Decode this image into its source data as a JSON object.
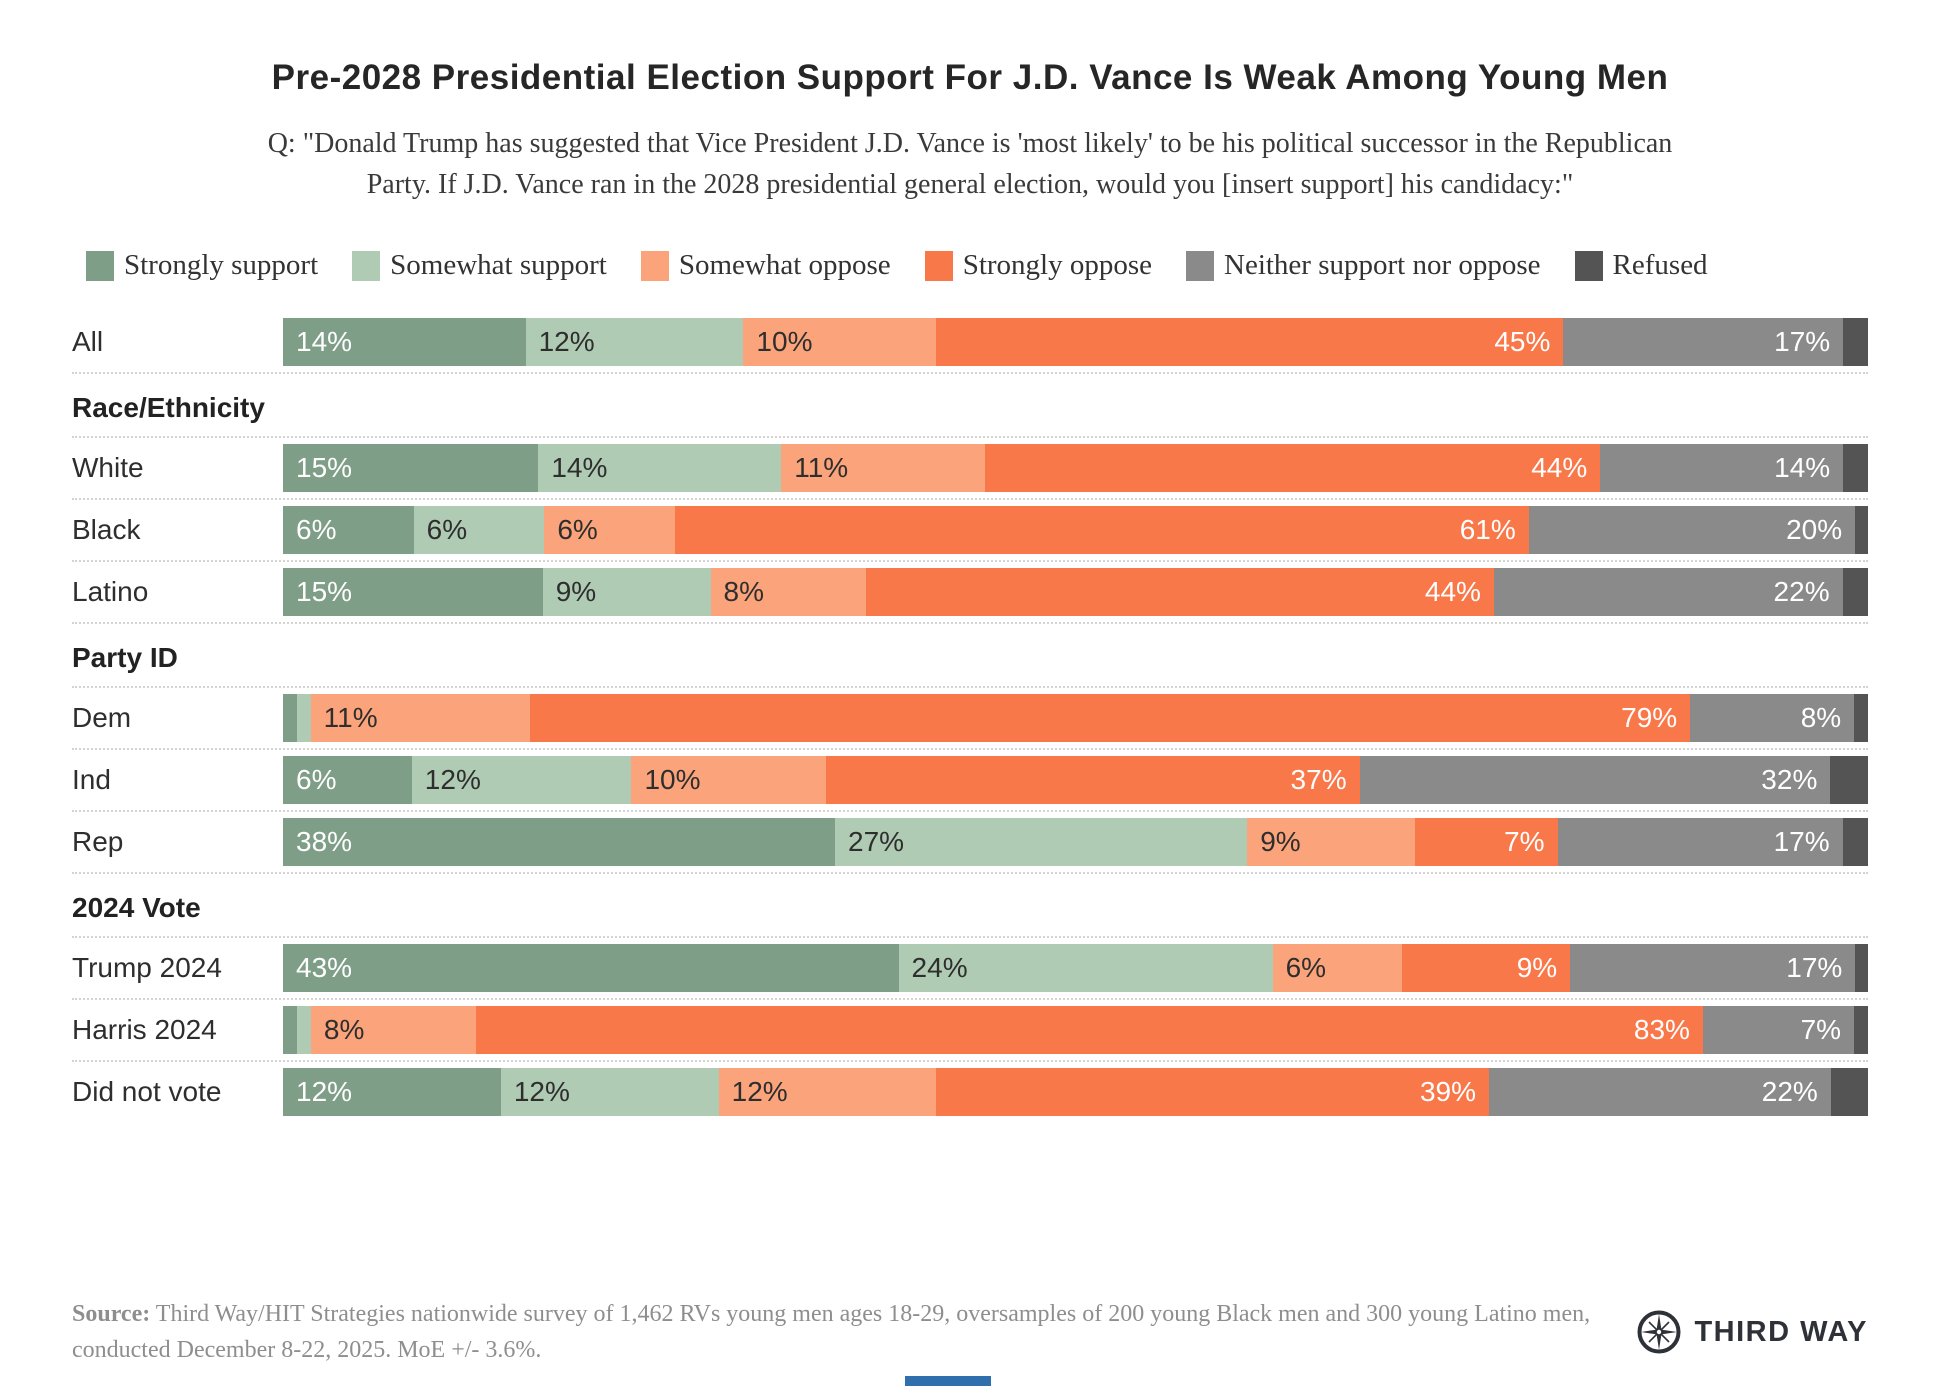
{
  "title": "Pre-2028 Presidential Election Support For J.D. Vance Is Weak Among Young Men",
  "question": "Q: \"Donald Trump has suggested that Vice President J.D. Vance is 'most likely' to be his political successor in the Republican Party. If J.D. Vance ran in the 2028 presidential general election, would you [insert support] his candidacy:\"",
  "chart_data": {
    "type": "bar",
    "variant": "horizontal-stacked",
    "unit": "%",
    "legend_position": "top",
    "label_threshold": 5,
    "series_names": [
      "Strongly support",
      "Somewhat support",
      "Somewhat oppose",
      "Strongly oppose",
      "Neither support nor oppose",
      "Refused"
    ],
    "series_colors": [
      "#7E9E88",
      "#AFCBB3",
      "#FBA47B",
      "#F97849",
      "#8A8A8A",
      "#545454"
    ],
    "series_label_colors": [
      "#FFFFFF",
      "#2E2E2E",
      "#2E2E2E",
      "#FFFFFF",
      "#FFFFFF",
      ""
    ],
    "rows": [
      {
        "type": "bar",
        "label": "All",
        "values": [
          14,
          12,
          10,
          45,
          17,
          2
        ]
      },
      {
        "type": "section",
        "label": "Race/Ethnicity"
      },
      {
        "type": "bar",
        "label": "White",
        "values": [
          15,
          14,
          11,
          44,
          14,
          2
        ]
      },
      {
        "type": "bar",
        "label": "Black",
        "values": [
          6,
          6,
          6,
          61,
          20,
          1
        ]
      },
      {
        "type": "bar",
        "label": "Latino",
        "values": [
          15,
          9,
          8,
          44,
          22,
          2
        ]
      },
      {
        "type": "section",
        "label": "Party ID"
      },
      {
        "type": "bar",
        "label": "Dem",
        "values": [
          1,
          1,
          11,
          79,
          8,
          1
        ]
      },
      {
        "type": "bar",
        "label": "Ind",
        "values": [
          6,
          12,
          10,
          37,
          32,
          3
        ]
      },
      {
        "type": "bar",
        "label": "Rep",
        "values": [
          38,
          27,
          9,
          7,
          17,
          2
        ]
      },
      {
        "type": "section",
        "label": "2024 Vote"
      },
      {
        "type": "bar",
        "label": "Trump 2024",
        "values": [
          43,
          24,
          6,
          9,
          17,
          1
        ]
      },
      {
        "type": "bar",
        "label": "Harris 2024",
        "values": [
          1,
          1,
          8,
          83,
          7,
          1
        ]
      },
      {
        "type": "bar",
        "label": "Did not vote",
        "values": [
          12,
          12,
          12,
          39,
          22,
          3
        ]
      }
    ]
  },
  "source": {
    "prefix": "Source:",
    "text": " Third Way/HIT Strategies nationwide survey of 1,462 RVs young men ages 18-29, oversamples of 200 young Black men and 300 young Latino men, conducted December 8-22, 2025. MoE +/- 3.6%."
  },
  "logo": {
    "text": "THIRD WAY",
    "color": "#2e3138"
  },
  "accent_strip_color": "#2f6fad"
}
